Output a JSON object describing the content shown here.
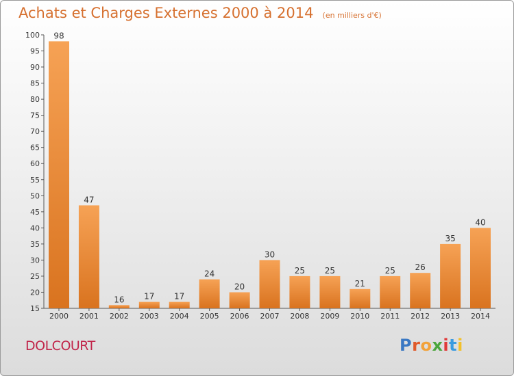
{
  "header": {
    "title": "Achats et Charges Externes 2000 à 2014",
    "subtitle": "(en milliers d'€)"
  },
  "footer": {
    "place": "DOLCOURT",
    "logo": {
      "letters": [
        "P",
        "r",
        "o",
        "x",
        "i",
        "t",
        "i"
      ]
    }
  },
  "colors": {
    "title": "#d6702f",
    "place": "#c1254a",
    "bar_light": "#f6a255",
    "bar_dark": "#d9731f",
    "logo": [
      "#3a78c3",
      "#e05a2b",
      "#f2a23a",
      "#4aa63c",
      "#e03a3a",
      "#3a9be0",
      "#f2c02a"
    ]
  },
  "chart_data": {
    "type": "bar",
    "categories": [
      "2000",
      "2001",
      "2002",
      "2003",
      "2004",
      "2005",
      "2006",
      "2007",
      "2008",
      "2009",
      "2010",
      "2011",
      "2012",
      "2013",
      "2014"
    ],
    "values": [
      98,
      47,
      16,
      17,
      17,
      24,
      20,
      30,
      25,
      25,
      21,
      25,
      26,
      35,
      40
    ],
    "title": "Achats et Charges Externes 2000 à 2014",
    "subtitle": "(en milliers d'€)",
    "xlabel": "",
    "ylabel": "",
    "ylim": [
      15,
      100
    ],
    "yticks": [
      15,
      20,
      25,
      30,
      35,
      40,
      45,
      50,
      55,
      60,
      65,
      70,
      75,
      80,
      85,
      90,
      95,
      100
    ],
    "grid": false,
    "data_labels": true
  }
}
